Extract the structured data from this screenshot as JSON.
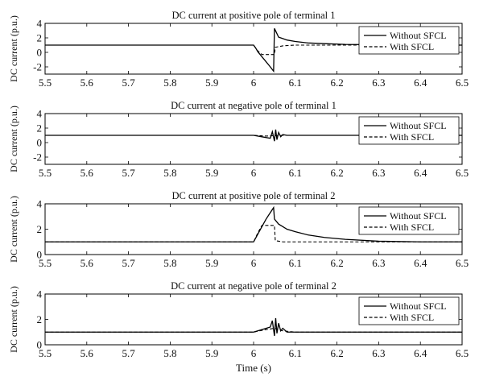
{
  "figure": {
    "xlabel": "Time (s)",
    "xticks": [
      "5.5",
      "5.6",
      "5.7",
      "5.8",
      "5.9",
      "6",
      "6.1",
      "6.2",
      "6.3",
      "6.4",
      "6.5"
    ]
  },
  "chart_data": [
    {
      "type": "line",
      "title": "DC current at positive pole of terminal 1",
      "ylabel": "DC current (p.u.)",
      "xlim": [
        5.5,
        6.5
      ],
      "ylim": [
        -3,
        4
      ],
      "yticks": [
        "4",
        "2",
        "0",
        "-2"
      ],
      "ytick_values": [
        4,
        2,
        0,
        -2
      ],
      "legend": {
        "placement": "right",
        "entries": [
          "Without SFCL",
          "With SFCL"
        ]
      },
      "series": [
        {
          "name": "Without SFCL",
          "style": "solid",
          "x": [
            5.5,
            6.0,
            6.005,
            6.01,
            6.02,
            6.03,
            6.04,
            6.048,
            6.05,
            6.055,
            6.06,
            6.07,
            6.08,
            6.1,
            6.13,
            6.17,
            6.22,
            6.3,
            6.4,
            6.5
          ],
          "y": [
            1.0,
            1.0,
            0.6,
            0.1,
            -0.6,
            -1.3,
            -2.0,
            -2.6,
            3.3,
            2.7,
            2.1,
            1.9,
            1.7,
            1.5,
            1.3,
            1.2,
            1.1,
            1.05,
            1.0,
            1.0
          ]
        },
        {
          "name": "With SFCL",
          "style": "dashed",
          "x": [
            5.5,
            6.0,
            6.01,
            6.02,
            6.05,
            6.052,
            6.07,
            6.1,
            6.15,
            6.2,
            6.3,
            6.5
          ],
          "y": [
            1.0,
            1.0,
            0.2,
            -0.3,
            -0.3,
            0.7,
            0.9,
            1.0,
            1.0,
            1.0,
            1.0,
            1.0
          ]
        }
      ]
    },
    {
      "type": "line",
      "title": "DC current at negative pole of terminal 1",
      "ylabel": "DC current (p.u.)",
      "xlim": [
        5.5,
        6.5
      ],
      "ylim": [
        -3,
        4
      ],
      "yticks": [
        "4",
        "2",
        "0",
        "-2"
      ],
      "ytick_values": [
        4,
        2,
        0,
        -2
      ],
      "legend": {
        "placement": "right",
        "entries": [
          "Without SFCL",
          "With SFCL"
        ]
      },
      "series": [
        {
          "name": "Without SFCL",
          "style": "solid",
          "x": [
            5.5,
            5.9,
            6.0,
            6.02,
            6.04,
            6.045,
            6.05,
            6.053,
            6.056,
            6.06,
            6.065,
            6.07,
            6.08,
            6.1,
            6.2,
            6.5
          ],
          "y": [
            1.0,
            1.0,
            1.0,
            0.8,
            0.6,
            1.5,
            0.2,
            1.8,
            0.4,
            1.4,
            0.8,
            1.1,
            1.0,
            1.0,
            1.0,
            1.0
          ]
        },
        {
          "name": "With SFCL",
          "style": "dashed",
          "x": [
            5.5,
            6.0,
            6.03,
            6.05,
            6.07,
            6.1,
            6.5
          ],
          "y": [
            1.0,
            1.0,
            0.9,
            0.95,
            1.0,
            1.0,
            1.0
          ]
        }
      ]
    },
    {
      "type": "line",
      "title": "DC current at positive pole of terminal 2",
      "ylabel": "DC current (p.u.)",
      "xlim": [
        5.5,
        6.5
      ],
      "ylim": [
        0,
        4
      ],
      "yticks": [
        "4",
        "2",
        "0"
      ],
      "ytick_values": [
        4,
        2,
        0
      ],
      "legend": {
        "placement": "right",
        "entries": [
          "Without SFCL",
          "With SFCL"
        ]
      },
      "series": [
        {
          "name": "Without SFCL",
          "style": "solid",
          "x": [
            5.5,
            6.0,
            6.01,
            6.02,
            6.03,
            6.04,
            6.048,
            6.05,
            6.055,
            6.06,
            6.07,
            6.08,
            6.1,
            6.13,
            6.17,
            6.22,
            6.3,
            6.4,
            6.5
          ],
          "y": [
            1.0,
            1.0,
            1.6,
            2.2,
            2.8,
            3.3,
            3.7,
            2.8,
            2.6,
            2.4,
            2.2,
            2.0,
            1.8,
            1.55,
            1.35,
            1.2,
            1.05,
            1.0,
            1.0
          ]
        },
        {
          "name": "With SFCL",
          "style": "dashed",
          "x": [
            5.5,
            6.0,
            6.01,
            6.02,
            6.05,
            6.052,
            6.07,
            6.1,
            6.2,
            6.5
          ],
          "y": [
            1.0,
            1.0,
            1.7,
            2.3,
            2.3,
            1.1,
            1.0,
            1.0,
            1.0,
            1.0
          ]
        }
      ]
    },
    {
      "type": "line",
      "title": "DC current at negative pole of terminal 2",
      "ylabel": "DC current (p.u.)",
      "xlim": [
        5.5,
        6.5
      ],
      "ylim": [
        0,
        4
      ],
      "yticks": [
        "4",
        "2",
        "0"
      ],
      "ytick_values": [
        4,
        2,
        0
      ],
      "legend": {
        "placement": "right",
        "entries": [
          "Without SFCL",
          "With SFCL"
        ]
      },
      "series": [
        {
          "name": "Without SFCL",
          "style": "solid",
          "x": [
            5.5,
            5.9,
            6.0,
            6.02,
            6.04,
            6.045,
            6.05,
            6.053,
            6.056,
            6.06,
            6.065,
            6.07,
            6.08,
            6.1,
            6.2,
            6.5
          ],
          "y": [
            1.0,
            1.0,
            1.0,
            1.2,
            1.4,
            1.9,
            0.7,
            2.1,
            0.9,
            1.7,
            1.1,
            1.3,
            1.0,
            1.0,
            1.0,
            1.0
          ]
        },
        {
          "name": "With SFCL",
          "style": "dashed",
          "x": [
            5.5,
            6.0,
            6.03,
            6.05,
            6.07,
            6.1,
            6.5
          ],
          "y": [
            1.0,
            1.0,
            1.2,
            1.3,
            1.1,
            1.0,
            1.0
          ]
        }
      ]
    }
  ]
}
